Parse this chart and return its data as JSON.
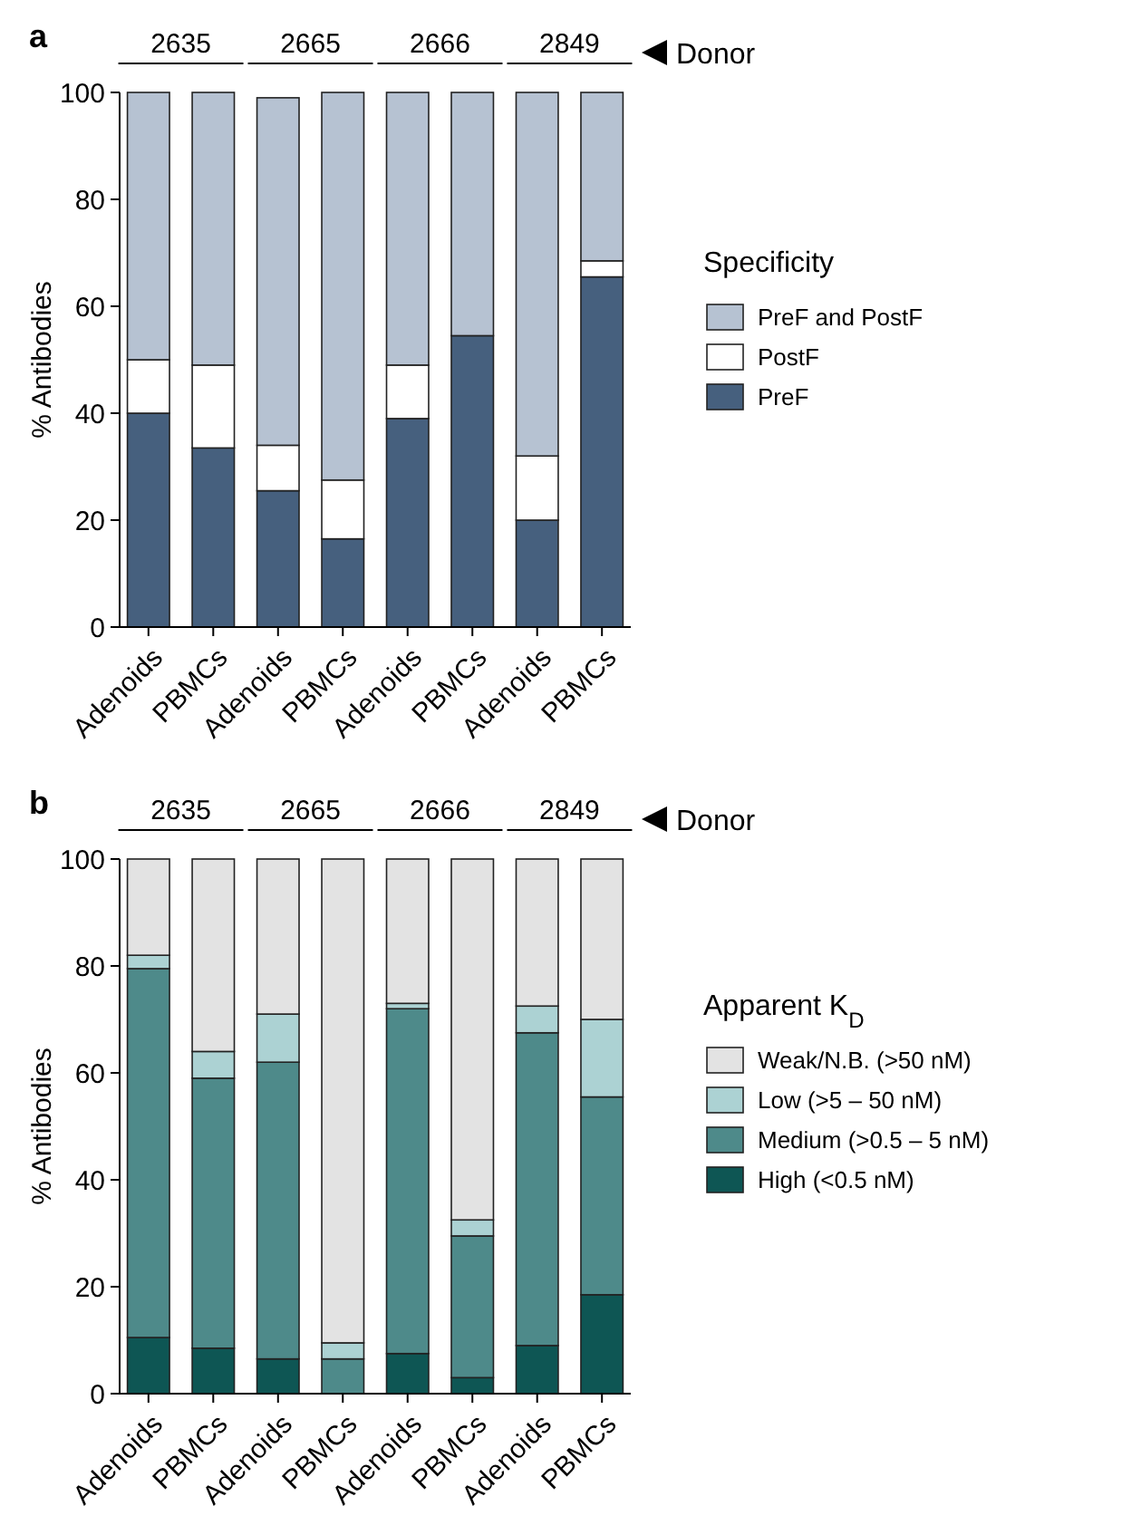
{
  "chart_data": [
    {
      "type": "bar",
      "stacked": true,
      "ylabel": "% Antibodies",
      "legend_title": "Specificity",
      "legend": "right",
      "annotations": [
        "a",
        "2635",
        "2665",
        "2666",
        "2849",
        "Donor"
      ],
      "categories": [
        "Adenoids",
        "PBMCs",
        "Adenoids",
        "PBMCs",
        "Adenoids",
        "PBMCs",
        "Adenoids",
        "PBMCs"
      ],
      "ylim": [
        0,
        100
      ],
      "yticks": [
        0,
        20,
        40,
        60,
        80,
        100
      ],
      "series": [
        {
          "name": "PreF",
          "color": "#46607e",
          "values": [
            40,
            33.5,
            25.5,
            16.5,
            39,
            54.5,
            20,
            65.5
          ]
        },
        {
          "name": "PostF",
          "color": "#ffffff",
          "values": [
            10,
            15.5,
            8.5,
            11,
            10,
            0,
            12,
            3
          ]
        },
        {
          "name": "PreF and PostF",
          "color": "#b6c2d2",
          "values": [
            50,
            51,
            65,
            72.5,
            51,
            45.5,
            68,
            31.5
          ]
        }
      ]
    },
    {
      "type": "bar",
      "stacked": true,
      "ylabel": "% Antibodies",
      "legend_title": "Apparent K$_{D}$",
      "legend": "right",
      "annotations": [
        "b",
        "2635",
        "2665",
        "2666",
        "2849",
        "Donor"
      ],
      "categories": [
        "Adenoids",
        "PBMCs",
        "Adenoids",
        "PBMCs",
        "Adenoids",
        "PBMCs",
        "Adenoids",
        "PBMCs"
      ],
      "ylim": [
        0,
        100
      ],
      "yticks": [
        0,
        20,
        40,
        60,
        80,
        100
      ],
      "series": [
        {
          "name": "High (<0.5 nM)",
          "color": "#0e5654",
          "values": [
            10.5,
            8.5,
            6.5,
            0,
            7.5,
            3,
            9,
            18.5
          ]
        },
        {
          "name": "Medium (>0.5 – 5 nM)",
          "color": "#4e8a8a",
          "values": [
            69,
            50.5,
            55.5,
            6.5,
            64.5,
            26.5,
            58.5,
            37
          ]
        },
        {
          "name": "Low (>5 – 50 nM)",
          "color": "#acd2d3",
          "values": [
            2.5,
            5,
            9,
            3,
            1,
            3,
            5,
            14.5
          ]
        },
        {
          "name": "Weak/N.B. (>50 nM)",
          "color": "#e3e3e3",
          "values": [
            18,
            36,
            29,
            90.5,
            27,
            67.5,
            27.5,
            30
          ]
        }
      ]
    }
  ]
}
